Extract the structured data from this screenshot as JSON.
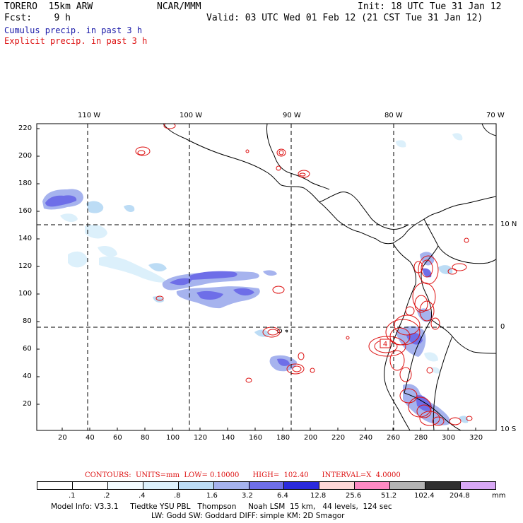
{
  "header": {
    "model": "TORERO  15km ARW",
    "org": "NCAR/MMM",
    "init": "Init: 18 UTC Tue 31 Jan 12",
    "fcst": "Fcst:    9 h",
    "valid": "Valid: 03 UTC Wed 01 Feb 12 (21 CST Tue 31 Jan 12)",
    "cumulus_label": "Cumulus precip. in past 3 h",
    "explicit_label": "Explicit precip. in past 3 h"
  },
  "colors": {
    "cumulus": "#1a1aa8",
    "explicit": "#dd1111",
    "coast": "#000000",
    "grid": "#000000"
  },
  "map": {
    "lon_labels": [
      "110 W",
      "100 W",
      "90 W",
      "80 W",
      "70 W"
    ],
    "lat_labels": [
      "10 N",
      "0",
      "10 S"
    ],
    "y_ticks": [
      "220",
      "200",
      "180",
      "160",
      "140",
      "120",
      "100",
      "80",
      "60",
      "40",
      "20"
    ],
    "x_ticks": [
      "20",
      "40",
      "60",
      "80",
      "100",
      "120",
      "140",
      "160",
      "180",
      "200",
      "220",
      "240",
      "260",
      "280",
      "300",
      "320"
    ],
    "contour_tag": "4"
  },
  "legend": {
    "contours_line": "CONTOURS:  UNITS=mm  LOW= 0.10000      HIGH=  102.40      INTERVAL=X  4.0000",
    "unit": "mm",
    "levels": [
      ".1",
      ".2",
      ".4",
      ".8",
      "1.6",
      "3.2",
      "6.4",
      "12.8",
      "25.6",
      "51.2",
      "102.4",
      "204.8"
    ],
    "swatch_colors": [
      "#ffffff",
      "#ffffff",
      "#f2fbff",
      "#dcf0fb",
      "#bcdcf5",
      "#a6b3ee",
      "#6e6ee8",
      "#2a2add",
      "#ffd8d8",
      "#ff8ac4",
      "#b4b4b4",
      "#303030",
      "#d8a8f5"
    ]
  },
  "footer": {
    "line1": "Model Info: V3.3.1     Tiedtke YSU PBL   Thompson     Noah LSM  15 km,   44 levels,  124 sec",
    "line2": "LW: Godd SW: Goddard DIFF: simple KM: 2D Smagor"
  }
}
